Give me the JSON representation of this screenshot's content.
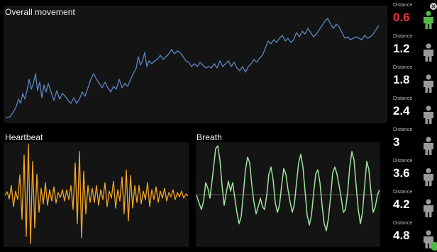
{
  "colors": {
    "movement_line": "#5b86c2",
    "heartbeat_line": "#f5a623",
    "breath_line": "#9fe39f",
    "alert_value": "#e4303c",
    "active_person": "#52b848",
    "inactive_person": "#9a9a9a"
  },
  "panels": {
    "movement": {
      "title": "Overall movement"
    },
    "heartbeat": {
      "title": "Heartbeat"
    },
    "breath": {
      "title": "Breath"
    }
  },
  "zones": [
    {
      "label": "Distance",
      "value": "0.6",
      "alert": true,
      "active": true,
      "icon": "person-icon"
    },
    {
      "label": "Distance",
      "value": "1.2",
      "alert": false,
      "active": false,
      "icon": "person-icon"
    },
    {
      "label": "Distance",
      "value": "1.8",
      "alert": false,
      "active": false,
      "icon": "person-icon"
    },
    {
      "label": "Distance",
      "value": "2.4",
      "alert": false,
      "active": false,
      "icon": "person-icon"
    },
    {
      "label": "Distance",
      "value": "3",
      "alert": false,
      "active": false,
      "icon": "person-icon"
    },
    {
      "label": "Distance",
      "value": "3.6",
      "alert": false,
      "active": false,
      "icon": "person-icon"
    },
    {
      "label": "Distance",
      "value": "4.2",
      "alert": false,
      "active": false,
      "icon": "person-icon"
    },
    {
      "label": "Distance",
      "value": "4.8",
      "alert": false,
      "active": false,
      "icon": "person-icon"
    }
  ]
}
